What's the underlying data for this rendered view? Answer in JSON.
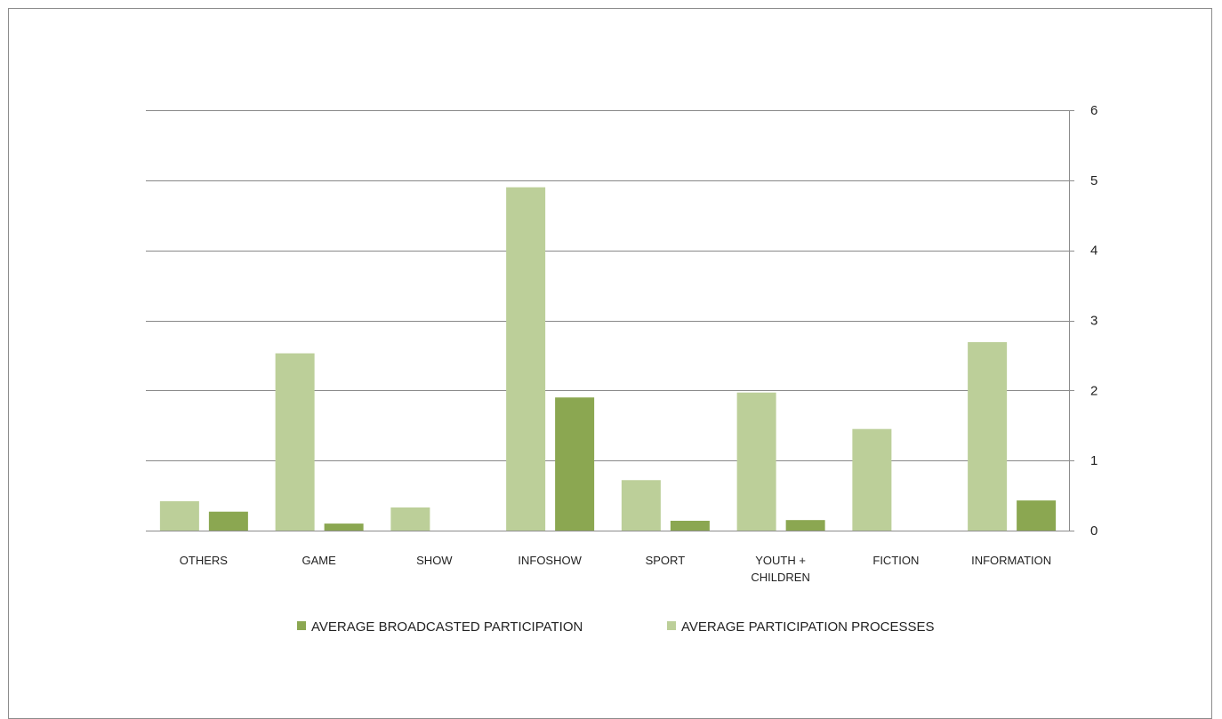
{
  "chart_data": {
    "type": "bar",
    "categories": [
      "OTHERS",
      "GAME",
      "SHOW",
      "INFOSHOW",
      "SPORT",
      "YOUTH + CHILDREN",
      "FICTION",
      "INFORMATION"
    ],
    "category_lines": [
      [
        "OTHERS"
      ],
      [
        "GAME"
      ],
      [
        "SHOW"
      ],
      [
        "INFOSHOW"
      ],
      [
        "SPORT"
      ],
      [
        "YOUTH +",
        "CHILDREN"
      ],
      [
        "FICTION"
      ],
      [
        "INFORMATION"
      ]
    ],
    "series": [
      {
        "name": "AVERAGE PARTICIPATION PROCESSES",
        "color": "#bccf99",
        "values": [
          0.42,
          2.53,
          0.33,
          4.9,
          0.72,
          1.97,
          1.45,
          2.69
        ]
      },
      {
        "name": "AVERAGE BROADCASTED PARTICIPATION",
        "color": "#8ba751",
        "values": [
          0.27,
          0.1,
          0.0,
          1.9,
          0.14,
          0.15,
          0.0,
          0.43
        ]
      }
    ],
    "legend_order": [
      1,
      0
    ],
    "yticks": [
      0,
      1,
      2,
      3,
      4,
      5,
      6
    ],
    "ylim": [
      0,
      6
    ],
    "y_axis_side": "right",
    "grid": true,
    "legend_position": "bottom",
    "title": "",
    "xlabel": "",
    "ylabel": ""
  }
}
